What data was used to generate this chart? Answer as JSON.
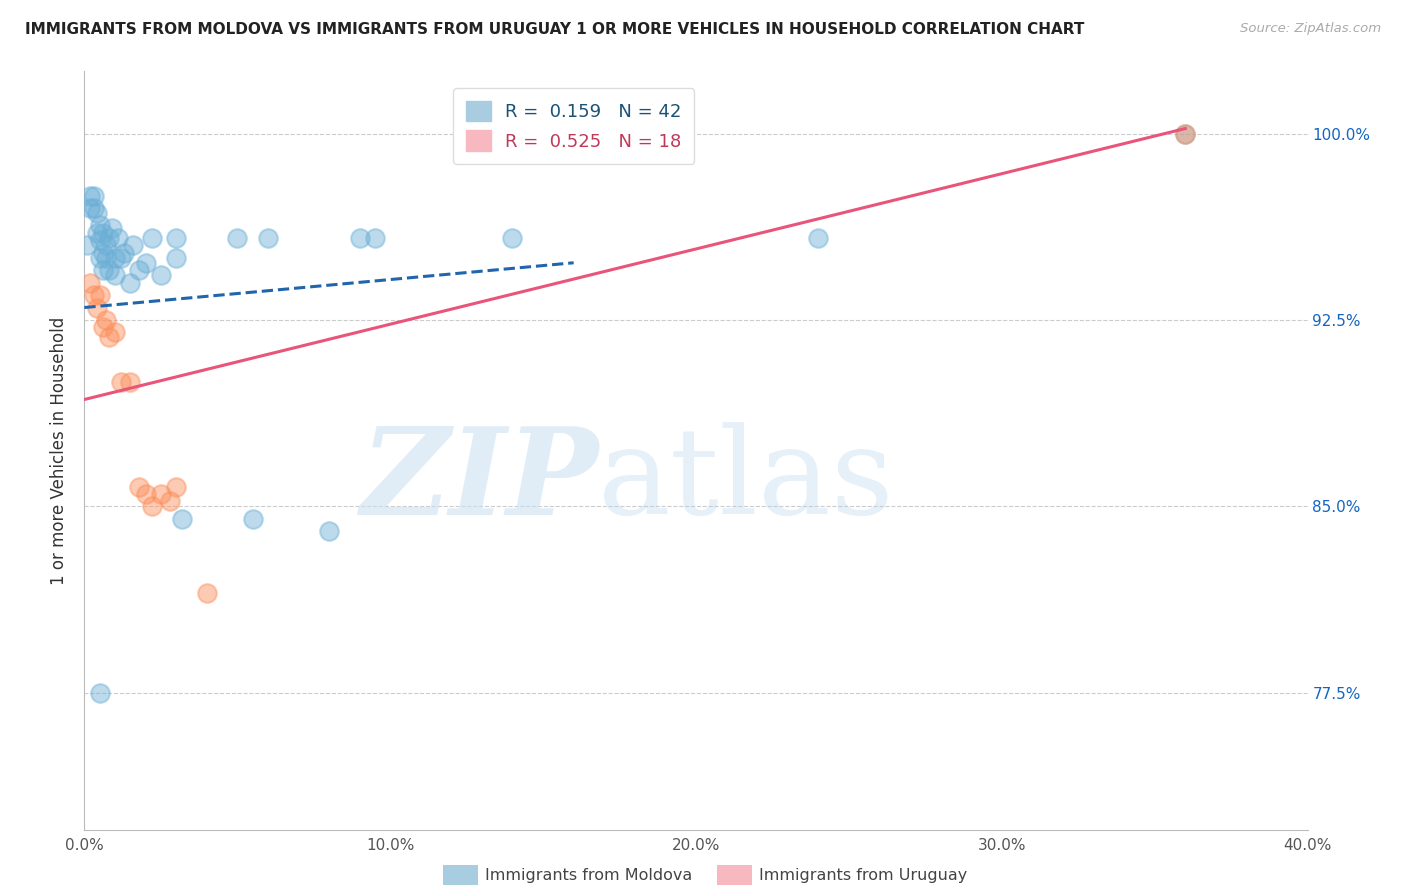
{
  "title": "IMMIGRANTS FROM MOLDOVA VS IMMIGRANTS FROM URUGUAY 1 OR MORE VEHICLES IN HOUSEHOLD CORRELATION CHART",
  "source": "Source: ZipAtlas.com",
  "xlabel_ticks": [
    "0.0%",
    "",
    "",
    "",
    "",
    "10.0%",
    "",
    "",
    "",
    "",
    "20.0%",
    "",
    "",
    "",
    "",
    "30.0%",
    "",
    "",
    "",
    "",
    "40.0%"
  ],
  "xlabel_tick_vals": [
    0.0,
    0.02,
    0.04,
    0.06,
    0.08,
    0.1,
    0.12,
    0.14,
    0.16,
    0.18,
    0.2,
    0.22,
    0.24,
    0.26,
    0.28,
    0.3,
    0.32,
    0.34,
    0.36,
    0.38,
    0.4
  ],
  "ylabel_ticks": [
    "77.5%",
    "85.0%",
    "92.5%",
    "100.0%"
  ],
  "ylabel_tick_vals": [
    0.775,
    0.85,
    0.925,
    1.0
  ],
  "xlim": [
    0.0,
    0.4
  ],
  "ylim": [
    0.72,
    1.025
  ],
  "ylabel": "1 or more Vehicles in Household",
  "moldova_color": "#6baed6",
  "uruguay_color": "#fc8d59",
  "moldova_line_color": "#2166ac",
  "uruguay_line_color": "#e8547a",
  "moldova_scatter_x": [
    0.001,
    0.002,
    0.002,
    0.003,
    0.003,
    0.004,
    0.004,
    0.005,
    0.005,
    0.005,
    0.006,
    0.006,
    0.006,
    0.007,
    0.007,
    0.008,
    0.008,
    0.009,
    0.01,
    0.01,
    0.011,
    0.012,
    0.013,
    0.015,
    0.016,
    0.018,
    0.02,
    0.022,
    0.025,
    0.03,
    0.03,
    0.032,
    0.05,
    0.055,
    0.06,
    0.08,
    0.09,
    0.095,
    0.14,
    0.24,
    0.36,
    0.005
  ],
  "moldova_scatter_y": [
    0.955,
    0.975,
    0.97,
    0.975,
    0.97,
    0.968,
    0.96,
    0.963,
    0.957,
    0.95,
    0.96,
    0.952,
    0.945,
    0.955,
    0.95,
    0.958,
    0.945,
    0.962,
    0.95,
    0.943,
    0.958,
    0.95,
    0.952,
    0.94,
    0.955,
    0.945,
    0.948,
    0.958,
    0.943,
    0.958,
    0.95,
    0.845,
    0.958,
    0.845,
    0.958,
    0.84,
    0.958,
    0.958,
    0.958,
    0.958,
    1.0,
    0.775
  ],
  "uruguay_scatter_x": [
    0.002,
    0.003,
    0.004,
    0.005,
    0.006,
    0.007,
    0.008,
    0.01,
    0.012,
    0.015,
    0.018,
    0.02,
    0.022,
    0.025,
    0.028,
    0.03,
    0.04,
    0.36
  ],
  "uruguay_scatter_y": [
    0.94,
    0.935,
    0.93,
    0.935,
    0.922,
    0.925,
    0.918,
    0.92,
    0.9,
    0.9,
    0.858,
    0.855,
    0.85,
    0.855,
    0.852,
    0.858,
    0.815,
    1.0
  ],
  "moldova_line": {
    "x0": 0.0,
    "x1": 0.16,
    "y0": 0.93,
    "y1": 0.948
  },
  "uruguay_line": {
    "x0": 0.0,
    "x1": 0.36,
    "y0": 0.893,
    "y1": 1.002
  }
}
